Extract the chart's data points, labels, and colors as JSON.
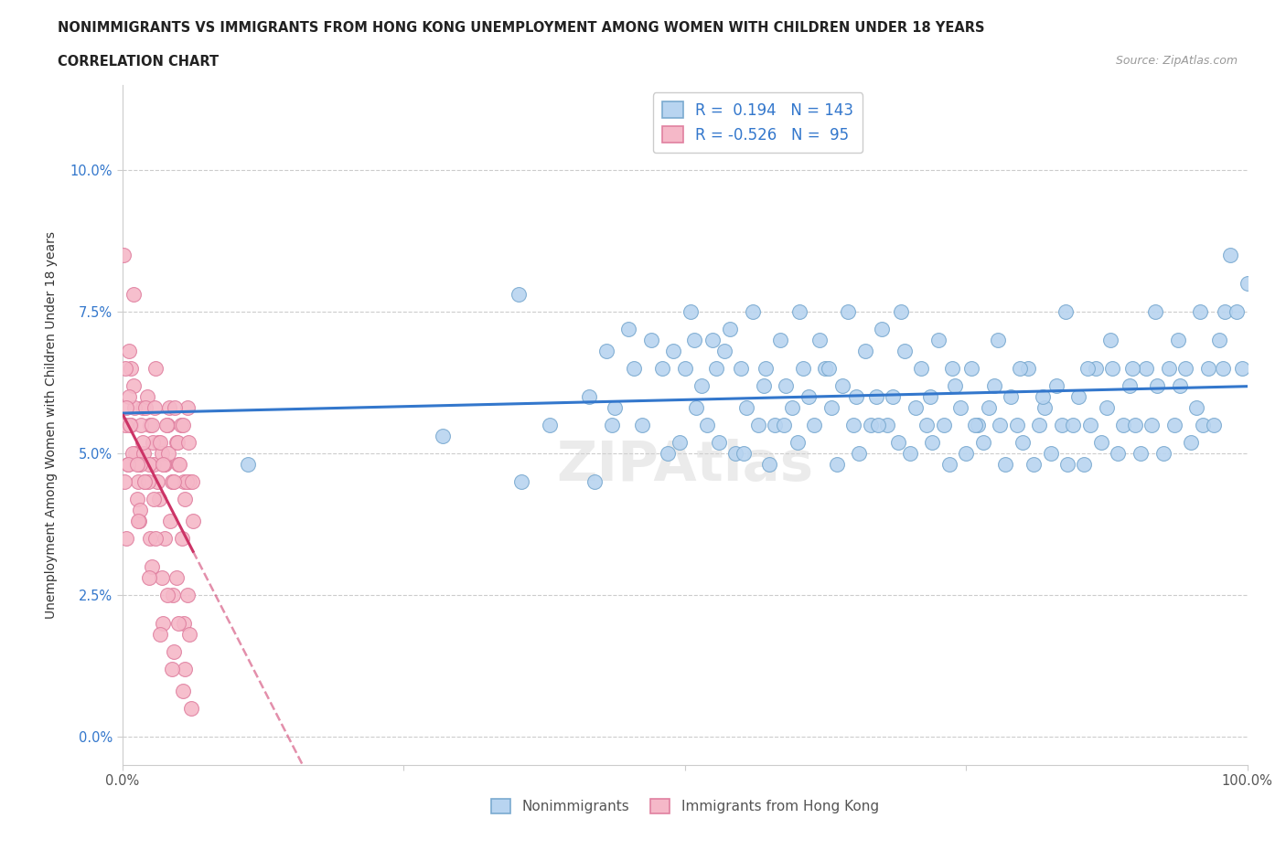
{
  "title_line1": "NONIMMIGRANTS VS IMMIGRANTS FROM HONG KONG UNEMPLOYMENT AMONG WOMEN WITH CHILDREN UNDER 18 YEARS",
  "title_line2": "CORRELATION CHART",
  "source_text": "Source: ZipAtlas.com",
  "ylabel": "Unemployment Among Women with Children Under 18 years",
  "xlim": [
    0,
    100
  ],
  "ylim": [
    -0.5,
    11.5
  ],
  "yticks": [
    0.0,
    2.5,
    5.0,
    7.5,
    10.0
  ],
  "ytick_labels": [
    "0.0%",
    "2.5%",
    "5.0%",
    "7.5%",
    "10.0%"
  ],
  "xtick_labels": [
    "0.0%",
    "",
    "",
    "",
    "100.0%"
  ],
  "blue_color": "#b8d4f0",
  "blue_edge": "#7aaad0",
  "pink_color": "#f5b8c8",
  "pink_edge": "#e080a0",
  "blue_line_color": "#3377cc",
  "pink_line_color": "#cc3366",
  "watermark": "ZIPAtlas",
  "blue_scatter_x": [
    11.2,
    28.5,
    35.2,
    38.0,
    41.5,
    43.0,
    43.8,
    45.0,
    45.5,
    46.2,
    47.0,
    48.0,
    49.0,
    49.5,
    50.0,
    50.5,
    51.0,
    51.5,
    52.0,
    52.5,
    53.0,
    53.5,
    54.0,
    54.5,
    55.0,
    55.5,
    56.0,
    56.5,
    57.0,
    57.5,
    58.0,
    58.5,
    59.0,
    59.5,
    60.0,
    60.5,
    61.0,
    61.5,
    62.0,
    62.5,
    63.0,
    63.5,
    64.0,
    64.5,
    65.0,
    65.5,
    66.0,
    66.5,
    67.0,
    67.5,
    68.0,
    68.5,
    69.0,
    69.5,
    70.0,
    70.5,
    71.0,
    71.5,
    72.0,
    72.5,
    73.0,
    73.5,
    74.0,
    74.5,
    75.0,
    75.5,
    76.0,
    76.5,
    77.0,
    77.5,
    78.0,
    78.5,
    79.0,
    79.5,
    80.0,
    80.5,
    81.0,
    81.5,
    82.0,
    82.5,
    83.0,
    83.5,
    84.0,
    84.5,
    85.0,
    85.5,
    86.0,
    86.5,
    87.0,
    87.5,
    88.0,
    88.5,
    89.0,
    89.5,
    90.0,
    90.5,
    91.0,
    91.5,
    92.0,
    92.5,
    93.0,
    93.5,
    94.0,
    94.5,
    95.0,
    95.5,
    96.0,
    96.5,
    97.0,
    97.5,
    98.0,
    98.5,
    99.0,
    99.5,
    100.0,
    35.5,
    42.0,
    43.5,
    48.5,
    50.8,
    52.8,
    55.2,
    57.2,
    58.8,
    60.2,
    62.8,
    65.2,
    67.2,
    69.2,
    71.8,
    73.8,
    75.8,
    77.8,
    79.8,
    81.8,
    83.8,
    85.8,
    87.8,
    89.8,
    91.8,
    93.8,
    95.8,
    97.8
  ],
  "blue_scatter_y": [
    4.8,
    5.3,
    7.8,
    5.5,
    6.0,
    6.8,
    5.8,
    7.2,
    6.5,
    5.5,
    7.0,
    6.5,
    6.8,
    5.2,
    6.5,
    7.5,
    5.8,
    6.2,
    5.5,
    7.0,
    5.2,
    6.8,
    7.2,
    5.0,
    6.5,
    5.8,
    7.5,
    5.5,
    6.2,
    4.8,
    5.5,
    7.0,
    6.2,
    5.8,
    5.2,
    6.5,
    6.0,
    5.5,
    7.0,
    6.5,
    5.8,
    4.8,
    6.2,
    7.5,
    5.5,
    5.0,
    6.8,
    5.5,
    6.0,
    7.2,
    5.5,
    6.0,
    5.2,
    6.8,
    5.0,
    5.8,
    6.5,
    5.5,
    5.2,
    7.0,
    5.5,
    4.8,
    6.2,
    5.8,
    5.0,
    6.5,
    5.5,
    5.2,
    5.8,
    6.2,
    5.5,
    4.8,
    6.0,
    5.5,
    5.2,
    6.5,
    4.8,
    5.5,
    5.8,
    5.0,
    6.2,
    5.5,
    4.8,
    5.5,
    6.0,
    4.8,
    5.5,
    6.5,
    5.2,
    5.8,
    6.5,
    5.0,
    5.5,
    6.2,
    5.5,
    5.0,
    6.5,
    5.5,
    6.2,
    5.0,
    6.5,
    5.5,
    6.2,
    6.5,
    5.2,
    5.8,
    5.5,
    6.5,
    5.5,
    7.0,
    7.5,
    8.5,
    7.5,
    6.5,
    8.0,
    4.5,
    4.5,
    5.5,
    5.0,
    7.0,
    6.5,
    5.0,
    6.5,
    5.5,
    7.5,
    6.5,
    6.0,
    5.5,
    7.5,
    6.0,
    6.5,
    5.5,
    7.0,
    6.5,
    6.0,
    7.5,
    6.5,
    7.0,
    6.5,
    7.5,
    7.0,
    7.5,
    6.5
  ],
  "pink_scatter_x": [
    0.5,
    0.8,
    1.0,
    1.2,
    1.5,
    1.8,
    2.0,
    2.2,
    2.5,
    2.8,
    3.0,
    3.2,
    3.5,
    3.8,
    4.0,
    4.2,
    4.5,
    4.8,
    5.0,
    5.2,
    5.5,
    5.8,
    6.0,
    0.3,
    0.6,
    0.9,
    1.1,
    1.4,
    1.7,
    1.9,
    2.1,
    2.4,
    2.7,
    2.9,
    3.1,
    3.4,
    3.7,
    3.9,
    4.1,
    4.4,
    4.7,
    4.9,
    5.1,
    5.4,
    5.7,
    5.9,
    6.2,
    0.4,
    0.7,
    1.3,
    1.6,
    2.3,
    2.6,
    3.3,
    3.6,
    4.3,
    4.6,
    5.3,
    5.6,
    6.3,
    0.2,
    0.8,
    1.8,
    2.8,
    3.8,
    4.8,
    5.8,
    0.5,
    1.5,
    2.5,
    3.5,
    4.5,
    5.5,
    1.0,
    2.0,
    3.0,
    4.0,
    5.0,
    6.0,
    0.6,
    1.6,
    2.6,
    3.6,
    4.6,
    5.6,
    0.4,
    1.4,
    2.4,
    3.4,
    4.4,
    5.4,
    6.1,
    0.3,
    1.3,
    0.1
  ],
  "pink_scatter_y": [
    4.8,
    5.5,
    6.2,
    5.0,
    4.8,
    5.8,
    4.5,
    6.0,
    5.5,
    4.8,
    6.5,
    5.2,
    5.0,
    4.8,
    5.5,
    5.8,
    4.5,
    5.2,
    4.8,
    5.5,
    4.5,
    5.8,
    4.5,
    5.5,
    6.8,
    5.0,
    5.8,
    4.5,
    5.5,
    5.0,
    5.8,
    4.8,
    5.2,
    5.8,
    4.5,
    5.2,
    4.8,
    5.5,
    5.0,
    4.5,
    5.8,
    5.2,
    4.8,
    5.5,
    4.5,
    5.2,
    4.5,
    3.5,
    5.5,
    4.2,
    4.8,
    4.5,
    5.5,
    4.2,
    4.8,
    3.8,
    4.5,
    3.5,
    4.2,
    3.8,
    4.5,
    6.5,
    5.2,
    4.2,
    3.5,
    2.8,
    2.5,
    4.8,
    3.8,
    3.5,
    2.8,
    2.5,
    2.0,
    7.8,
    4.5,
    3.5,
    2.5,
    2.0,
    1.8,
    6.0,
    4.0,
    3.0,
    2.0,
    1.5,
    1.2,
    5.8,
    3.8,
    2.8,
    1.8,
    1.2,
    0.8,
    0.5,
    6.5,
    4.8,
    8.5
  ]
}
